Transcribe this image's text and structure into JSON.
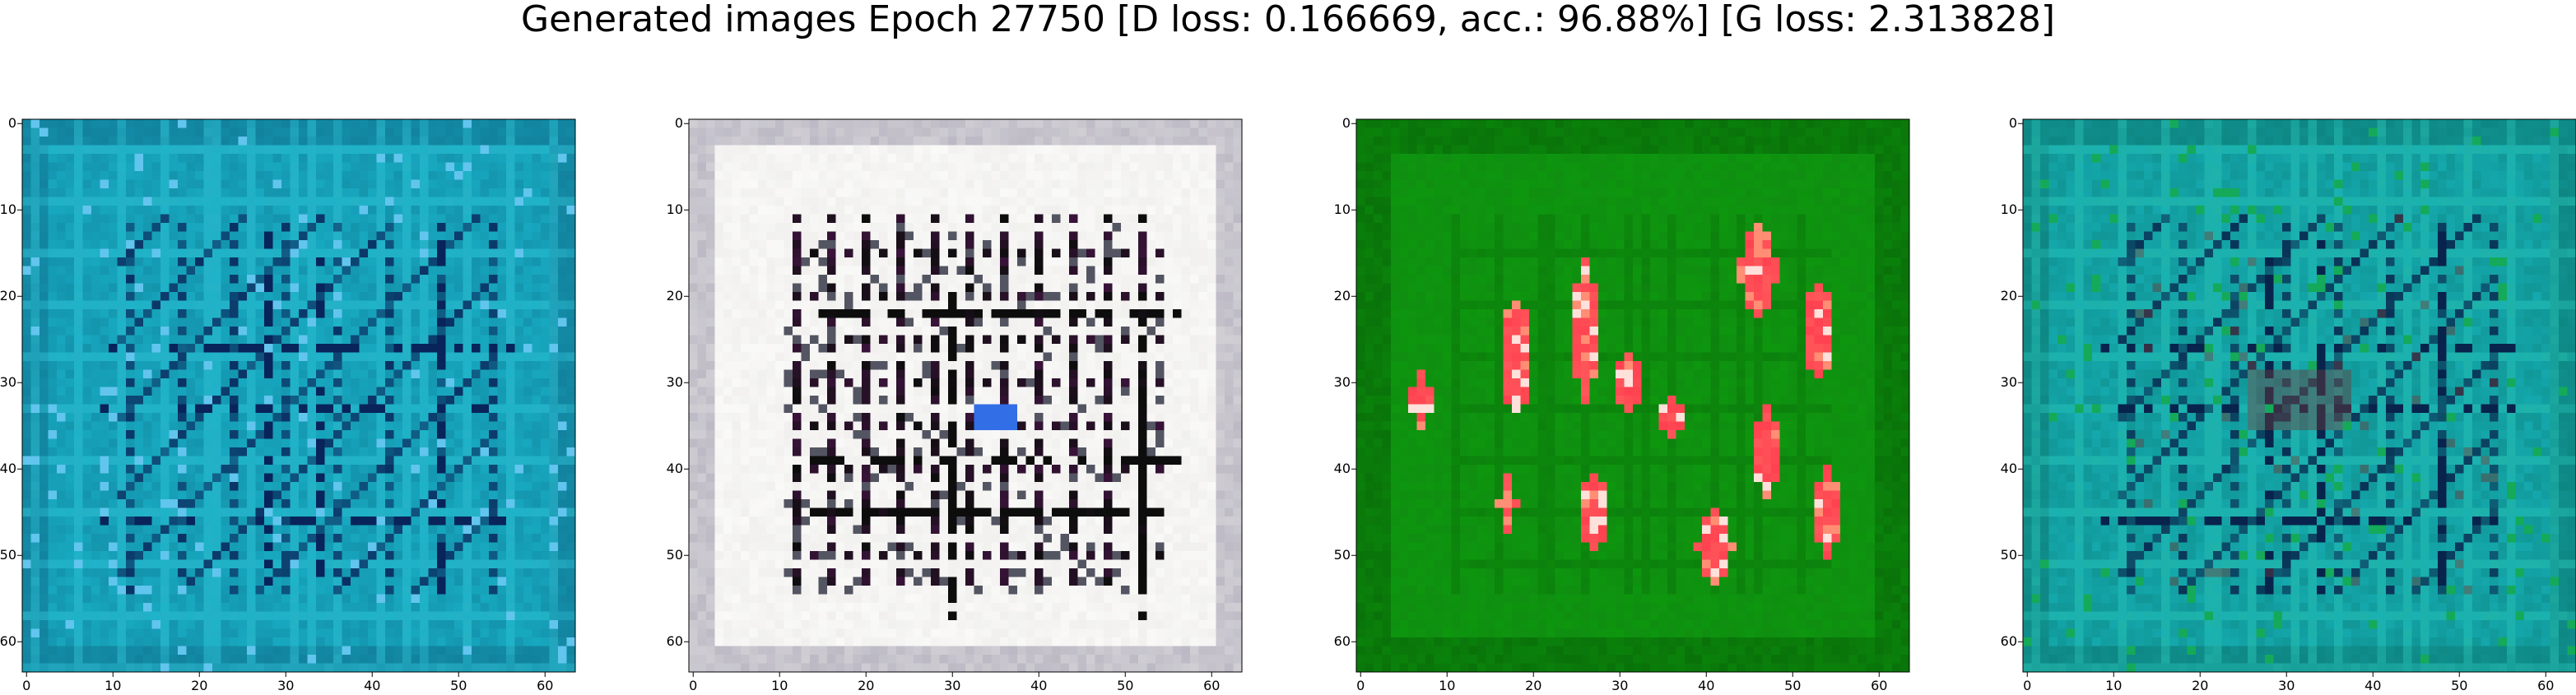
{
  "figure": {
    "title": "Generated images Epoch 27750 [D loss: 0.166669, acc.: 96.88%] [G loss: 2.313828]"
  },
  "panels": [
    {
      "name": "teal-generated-image",
      "palette": {
        "base": "#17a8bf",
        "dark": "#08245a",
        "mid": "#0f6f8d",
        "light": "#39d8e8",
        "accent": "#62c5ee",
        "hot": "#0b6b5f"
      },
      "x_ticks": [
        "0",
        "10",
        "20",
        "30",
        "40",
        "50",
        "60"
      ],
      "y_ticks": [
        "0",
        "10",
        "20",
        "30",
        "40",
        "50",
        "60"
      ]
    },
    {
      "name": "white-generated-image",
      "palette": {
        "base": "#ecebe8",
        "dark": "#0d0d0d",
        "mid": "#a8a4b3",
        "light": "#ffffff",
        "accent": "#7a1d7a",
        "hot": "#2d8d4a"
      },
      "x_ticks": [
        "0",
        "10",
        "20",
        "30",
        "40",
        "50",
        "60"
      ],
      "y_ticks": [
        "0",
        "10",
        "20",
        "30",
        "40",
        "50",
        "60"
      ]
    },
    {
      "name": "green-generated-image",
      "palette": {
        "base": "#0d9b0d",
        "dark": "#045c04",
        "mid": "#137a16",
        "light": "#46c13e",
        "accent": "#ff2442",
        "hot": "#ff9a7a"
      },
      "x_ticks": [
        "0",
        "10",
        "20",
        "30",
        "40",
        "50",
        "60"
      ],
      "y_ticks": [
        "0",
        "10",
        "20",
        "30",
        "40",
        "50",
        "60"
      ]
    },
    {
      "name": "teal-green-generated-image",
      "palette": {
        "base": "#14a7ab",
        "dark": "#08234c",
        "mid": "#0b7770",
        "light": "#30d6c5",
        "accent": "#14aa59",
        "hot": "#6c3d3d"
      },
      "x_ticks": [
        "0",
        "10",
        "20",
        "30",
        "40",
        "50",
        "60"
      ],
      "y_ticks": [
        "0",
        "10",
        "20",
        "30",
        "40",
        "50",
        "60"
      ]
    }
  ]
}
